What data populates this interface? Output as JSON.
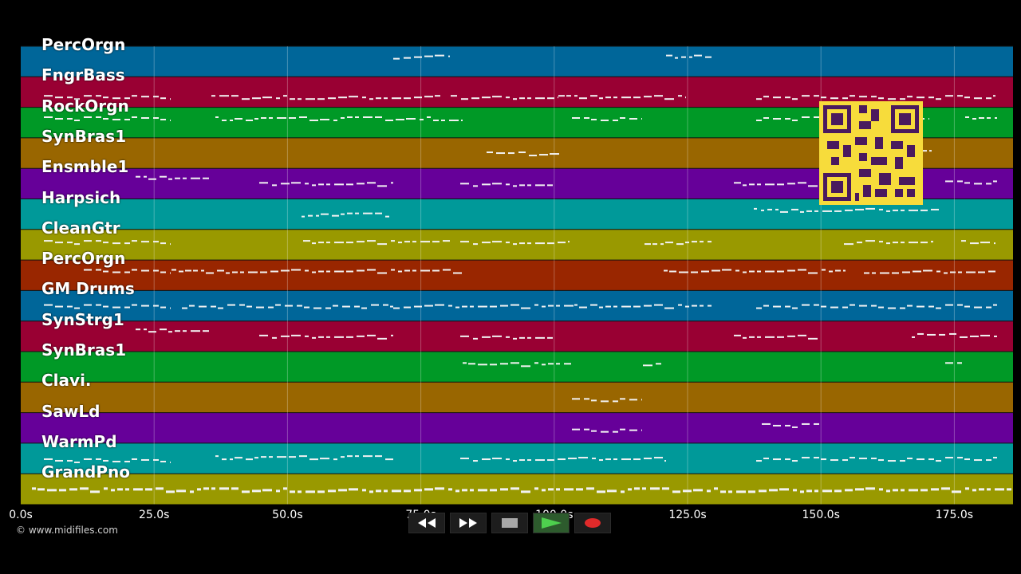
{
  "tracks": [
    {
      "name": "PercOrgn",
      "color": "#006699"
    },
    {
      "name": "FngrBass",
      "color": "#990033"
    },
    {
      "name": "RockOrgn",
      "color": "#009926"
    },
    {
      "name": "SynBras1",
      "color": "#996600"
    },
    {
      "name": "Ensmble1",
      "color": "#660099"
    },
    {
      "name": "Harpsich",
      "color": "#009999"
    },
    {
      "name": "CleanGtr",
      "color": "#999900"
    },
    {
      "name": "PercOrgn",
      "color": "#992600"
    },
    {
      "name": "GM Drums",
      "color": "#006699"
    },
    {
      "name": "SynStrg1",
      "color": "#990033"
    },
    {
      "name": "SynBras1",
      "color": "#009926"
    },
    {
      "name": "Clavi.",
      "color": "#996600"
    },
    {
      "name": "SawLd",
      "color": "#660099"
    },
    {
      "name": "WarmPd",
      "color": "#009999"
    },
    {
      "name": "GrandPno",
      "color": "#999900"
    }
  ],
  "timeline": {
    "ticks": [
      "0.0s",
      "25.0s",
      "50.0s",
      "75.0s",
      "100.0s",
      "125.0s",
      "150.0s",
      "175.0s"
    ]
  },
  "transport": {
    "rewind_icon": "rewind-icon",
    "forward_icon": "fast-forward-icon",
    "stop_icon": "stop-icon",
    "play_icon": "play-icon",
    "record_icon": "record-icon"
  },
  "copyright": "© www.midifiles.com"
}
